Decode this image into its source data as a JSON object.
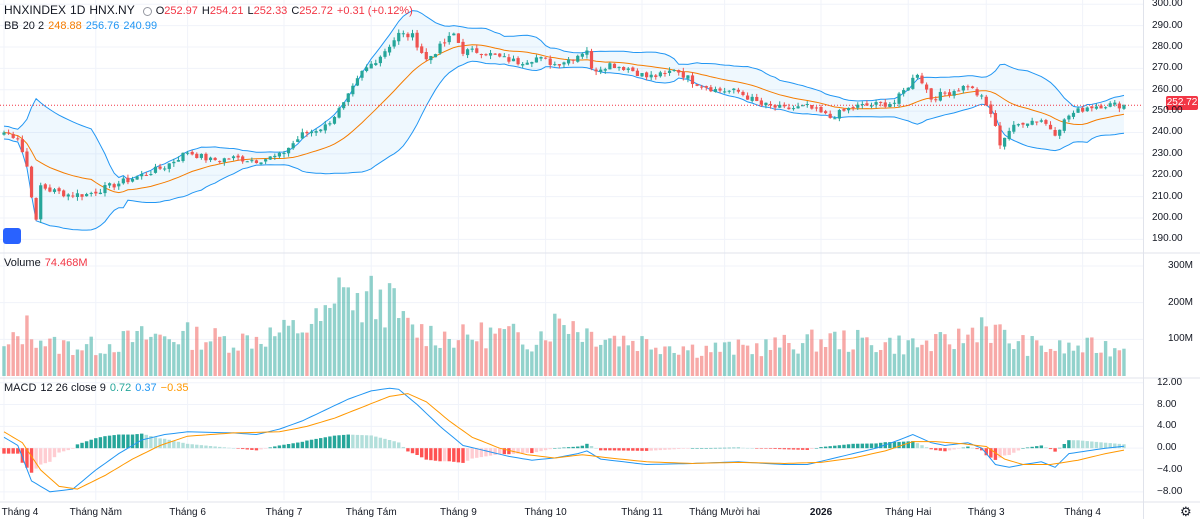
{
  "header": {
    "symbol": "HNXINDEX",
    "interval": "1D",
    "exchange": "HNX.NY",
    "open_label": "O",
    "open": "252.97",
    "high_label": "H",
    "high": "254.21",
    "low_label": "L",
    "low": "252.33",
    "close_label": "C",
    "close": "252.72",
    "change": "+0.31 (+0.12%)",
    "last_price_tag": "252.72"
  },
  "bb_legend": {
    "name": "BB",
    "params": "20 2",
    "basis": "248.88",
    "upper": "256.76",
    "lower": "240.99"
  },
  "volume_legend": {
    "name": "Volume",
    "value": "74.468M"
  },
  "macd_legend": {
    "name": "MACD",
    "params": "12 26 close 9",
    "histogram": "0.72",
    "macd": "0.37",
    "signal": "−0.35"
  },
  "colors": {
    "up": "#26a69a",
    "down": "#ef5350",
    "bb_band": "#2196f3",
    "bb_basis": "#f57c00",
    "macd_line": "#2196f3",
    "signal_line": "#ff9800"
  },
  "icons": {
    "settings": "gear-icon",
    "logo": "tradingview-logo-icon"
  },
  "chart_data": [
    {
      "type": "candlestick",
      "title": "HNXINDEX 1D HNX.NY",
      "y_ticks": [
        "300.00",
        "290.00",
        "280.00",
        "270.00",
        "260.00",
        "250.00",
        "240.00",
        "230.00",
        "220.00",
        "210.00",
        "200.00",
        "190.00"
      ],
      "ylim": [
        185,
        302
      ],
      "x_tick_labels": [
        "Tháng 4",
        "Tháng Năm",
        "Tháng 6",
        "Tháng 7",
        "Tháng Tám",
        "Tháng 9",
        "Tháng 10",
        "Tháng 11",
        "Tháng Mười hai",
        "2026",
        "Tháng Hai",
        "Tháng 3",
        "Tháng 4"
      ],
      "x_tick_index": [
        0,
        20,
        40,
        61,
        80,
        99,
        118,
        139,
        157,
        178,
        197,
        214,
        235
      ],
      "close_keyframes": [
        [
          0,
          240
        ],
        [
          3,
          238
        ],
        [
          5,
          224
        ],
        [
          7,
          198
        ],
        [
          8,
          215
        ],
        [
          10,
          213
        ],
        [
          14,
          211
        ],
        [
          18,
          211
        ],
        [
          22,
          214
        ],
        [
          26,
          217
        ],
        [
          30,
          220
        ],
        [
          35,
          224
        ],
        [
          40,
          231
        ],
        [
          45,
          227
        ],
        [
          50,
          228
        ],
        [
          55,
          227
        ],
        [
          60,
          229
        ],
        [
          65,
          239
        ],
        [
          70,
          243
        ],
        [
          74,
          253
        ],
        [
          78,
          268
        ],
        [
          82,
          276
        ],
        [
          86,
          286
        ],
        [
          89,
          285
        ],
        [
          92,
          274
        ],
        [
          95,
          280
        ],
        [
          98,
          286
        ],
        [
          100,
          278
        ],
        [
          104,
          278
        ],
        [
          108,
          275
        ],
        [
          112,
          273
        ],
        [
          116,
          275
        ],
        [
          120,
          272
        ],
        [
          124,
          275
        ],
        [
          127,
          279
        ],
        [
          128,
          269
        ],
        [
          132,
          272
        ],
        [
          136,
          270
        ],
        [
          140,
          266
        ],
        [
          144,
          267
        ],
        [
          146,
          270
        ],
        [
          150,
          264
        ],
        [
          155,
          260
        ],
        [
          160,
          259
        ],
        [
          165,
          253
        ],
        [
          170,
          251
        ],
        [
          175,
          252
        ],
        [
          180,
          247
        ],
        [
          185,
          252
        ],
        [
          190,
          253
        ],
        [
          194,
          254
        ],
        [
          197,
          262
        ],
        [
          199,
          268
        ],
        [
          202,
          256
        ],
        [
          206,
          259
        ],
        [
          210,
          262
        ],
        [
          213,
          256
        ],
        [
          215,
          249
        ],
        [
          217,
          235
        ],
        [
          219,
          241
        ],
        [
          222,
          245
        ],
        [
          226,
          246
        ],
        [
          229,
          240
        ],
        [
          232,
          248
        ],
        [
          236,
          252
        ],
        [
          240,
          253
        ],
        [
          244,
          252.72
        ]
      ],
      "bollinger": {
        "period": 20,
        "stddev": 2,
        "basis_last": 248.88,
        "upper_last": 256.76,
        "lower_last": 240.99
      },
      "last_price": 252.72
    },
    {
      "type": "bar",
      "title": "Volume",
      "y_ticks": [
        "300M",
        "200M",
        "100M"
      ],
      "ylim": [
        0,
        330
      ],
      "keyframes_millions": [
        [
          0,
          70
        ],
        [
          5,
          130
        ],
        [
          10,
          85
        ],
        [
          20,
          80
        ],
        [
          30,
          105
        ],
        [
          40,
          110
        ],
        [
          50,
          95
        ],
        [
          60,
          115
        ],
        [
          67,
          140
        ],
        [
          72,
          170
        ],
        [
          74,
          310
        ],
        [
          76,
          180
        ],
        [
          80,
          210
        ],
        [
          84,
          200
        ],
        [
          88,
          130
        ],
        [
          95,
          110
        ],
        [
          100,
          105
        ],
        [
          105,
          115
        ],
        [
          110,
          110
        ],
        [
          115,
          100
        ],
        [
          122,
          160
        ],
        [
          127,
          120
        ],
        [
          135,
          100
        ],
        [
          145,
          85
        ],
        [
          150,
          75
        ],
        [
          160,
          75
        ],
        [
          170,
          85
        ],
        [
          180,
          100
        ],
        [
          190,
          90
        ],
        [
          200,
          85
        ],
        [
          205,
          90
        ],
        [
          210,
          110
        ],
        [
          213,
          150
        ],
        [
          216,
          120
        ],
        [
          220,
          90
        ],
        [
          225,
          80
        ],
        [
          230,
          75
        ],
        [
          240,
          80
        ],
        [
          244,
          74.468
        ]
      ],
      "last_value": "74.468M"
    },
    {
      "type": "line",
      "title": "MACD 12 26 close 9",
      "y_ticks": [
        "12.00",
        "8.00",
        "4.00",
        "0.00",
        "−4.00",
        "−8.00"
      ],
      "ylim": [
        -9.5,
        12.5
      ],
      "series": [
        {
          "name": "MACD",
          "keyframes": [
            [
              0,
              2
            ],
            [
              3,
              0.5
            ],
            [
              6,
              -6
            ],
            [
              10,
              -8
            ],
            [
              15,
              -7.5
            ],
            [
              20,
              -4
            ],
            [
              25,
              -1
            ],
            [
              30,
              1.5
            ],
            [
              35,
              2.5
            ],
            [
              40,
              3
            ],
            [
              50,
              2.8
            ],
            [
              55,
              2.5
            ],
            [
              60,
              3.5
            ],
            [
              65,
              5
            ],
            [
              70,
              7
            ],
            [
              75,
              9
            ],
            [
              80,
              10.5
            ],
            [
              84,
              11
            ],
            [
              86,
              10.8
            ],
            [
              90,
              8
            ],
            [
              95,
              4
            ],
            [
              100,
              0.5
            ],
            [
              105,
              -0.5
            ],
            [
              110,
              -1.5
            ],
            [
              115,
              -2.2
            ],
            [
              120,
              -1.8
            ],
            [
              125,
              -1
            ],
            [
              127,
              -0.5
            ],
            [
              130,
              -2
            ],
            [
              135,
              -2.5
            ],
            [
              140,
              -3
            ],
            [
              150,
              -2.8
            ],
            [
              160,
              -2.5
            ],
            [
              170,
              -3
            ],
            [
              175,
              -3
            ],
            [
              180,
              -2
            ],
            [
              185,
              -1
            ],
            [
              190,
              0
            ],
            [
              195,
              1.5
            ],
            [
              198,
              2.5
            ],
            [
              202,
              1
            ],
            [
              205,
              0.5
            ],
            [
              210,
              1
            ],
            [
              213,
              0
            ],
            [
              216,
              -3
            ],
            [
              219,
              -3.5
            ],
            [
              222,
              -3
            ],
            [
              226,
              -2.5
            ],
            [
              229,
              -3.5
            ],
            [
              232,
              -1
            ],
            [
              236,
              -0.5
            ],
            [
              240,
              0
            ],
            [
              244,
              0.37
            ]
          ]
        },
        {
          "name": "Signal",
          "keyframes": [
            [
              0,
              3
            ],
            [
              4,
              1
            ],
            [
              8,
              -4
            ],
            [
              12,
              -7
            ],
            [
              16,
              -7.5
            ],
            [
              22,
              -5
            ],
            [
              28,
              -2
            ],
            [
              34,
              0.5
            ],
            [
              40,
              2.2
            ],
            [
              50,
              2.8
            ],
            [
              60,
              3
            ],
            [
              66,
              4
            ],
            [
              72,
              5.5
            ],
            [
              78,
              7.5
            ],
            [
              84,
              9.5
            ],
            [
              88,
              10
            ],
            [
              92,
              8.5
            ],
            [
              97,
              5
            ],
            [
              102,
              2
            ],
            [
              108,
              0
            ],
            [
              114,
              -1.2
            ],
            [
              120,
              -1.8
            ],
            [
              126,
              -1.2
            ],
            [
              132,
              -1.8
            ],
            [
              140,
              -2.5
            ],
            [
              150,
              -2.8
            ],
            [
              160,
              -2.6
            ],
            [
              170,
              -2.8
            ],
            [
              178,
              -2.6
            ],
            [
              185,
              -1.8
            ],
            [
              192,
              -0.5
            ],
            [
              198,
              1.2
            ],
            [
              203,
              1.2
            ],
            [
              209,
              0.8
            ],
            [
              214,
              0.3
            ],
            [
              218,
              -2
            ],
            [
              222,
              -3
            ],
            [
              228,
              -3
            ],
            [
              234,
              -2.2
            ],
            [
              240,
              -1
            ],
            [
              244,
              -0.35
            ]
          ]
        },
        {
          "name": "Histogram",
          "last_value": 0.72
        }
      ]
    }
  ]
}
